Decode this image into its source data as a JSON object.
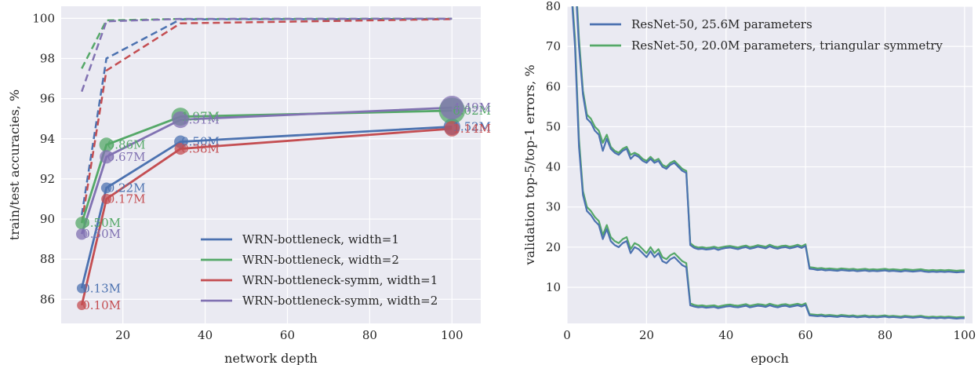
{
  "colors": {
    "blue": "#4c72b0",
    "green": "#55a868",
    "red": "#c44e52",
    "purple": "#8172b2",
    "background": "#eaeaf2",
    "grid": "#ffffff"
  },
  "chart_data": [
    {
      "type": "line",
      "xlabel": "network depth",
      "ylabel": "train/test accuracies, %",
      "xlim": [
        5,
        107
      ],
      "ylim": [
        84.8,
        100.6
      ],
      "xticks": [
        20,
        40,
        60,
        80,
        100
      ],
      "yticks": [
        86,
        88,
        90,
        92,
        94,
        96,
        98,
        100
      ],
      "grid": true,
      "legend_position": "lower-right",
      "x": [
        10,
        16,
        34,
        100
      ],
      "series": [
        {
          "name": "WRN-bottleneck, width=1",
          "color": "#4c72b0",
          "test": [
            86.55,
            91.55,
            93.85,
            94.6
          ],
          "train": [
            90.2,
            98.0,
            99.95,
            99.97
          ],
          "params": [
            "0.13M",
            "0.22M",
            "0.50M",
            "1.52M"
          ],
          "marker_sizes": [
            0.13,
            0.22,
            0.5,
            1.52
          ]
        },
        {
          "name": "WRN-bottleneck, width=2",
          "color": "#55a868",
          "test": [
            89.8,
            93.7,
            95.1,
            95.4
          ],
          "train": [
            97.5,
            99.9,
            99.97,
            99.98
          ],
          "params": [
            "0.50M",
            "0.86M",
            "1.97M",
            "6.02M"
          ],
          "marker_sizes": [
            0.5,
            0.86,
            1.97,
            6.02
          ]
        },
        {
          "name": "WRN-bottleneck-symm, width=1",
          "color": "#c44e52",
          "test": [
            85.7,
            91.0,
            93.5,
            94.5
          ],
          "train": [
            89.8,
            97.4,
            99.75,
            99.96
          ],
          "params": [
            "0.10M",
            "0.17M",
            "0.38M",
            "1.14M"
          ],
          "marker_sizes": [
            0.1,
            0.17,
            0.38,
            1.14
          ]
        },
        {
          "name": "WRN-bottleneck-symm, width=2",
          "color": "#8172b2",
          "test": [
            89.25,
            93.1,
            94.95,
            95.55
          ],
          "train": [
            96.35,
            99.85,
            99.97,
            99.98
          ],
          "params": [
            "0.30M",
            "0.67M",
            "1.51M",
            "4.49M"
          ],
          "marker_sizes": [
            0.3,
            0.67,
            1.51,
            4.49
          ]
        }
      ]
    },
    {
      "type": "line",
      "xlabel": "epoch",
      "ylabel": "validation top-5/top-1 errors, %",
      "xlim": [
        0,
        102
      ],
      "ylim": [
        1,
        80
      ],
      "xticks": [
        0,
        20,
        40,
        60,
        80,
        100
      ],
      "yticks": [
        10,
        20,
        30,
        40,
        50,
        60,
        70,
        80
      ],
      "grid": true,
      "legend_position": "top-right",
      "series": [
        {
          "name": "ResNet-50, 25.6M parameters",
          "color": "#4c72b0",
          "epochs": [
            1,
            2,
            3,
            4,
            5,
            6,
            7,
            8,
            9,
            10,
            11,
            12,
            13,
            14,
            15,
            16,
            17,
            18,
            19,
            20,
            21,
            22,
            23,
            24,
            25,
            26,
            27,
            28,
            29,
            30,
            31,
            32,
            33,
            34,
            35,
            36,
            37,
            38,
            39,
            40,
            41,
            42,
            43,
            44,
            45,
            46,
            47,
            48,
            49,
            50,
            51,
            52,
            53,
            54,
            55,
            56,
            57,
            58,
            59,
            60,
            61,
            62,
            63,
            64,
            65,
            66,
            67,
            68,
            69,
            70,
            71,
            72,
            73,
            74,
            75,
            76,
            77,
            78,
            79,
            80,
            81,
            82,
            83,
            84,
            85,
            86,
            87,
            88,
            89,
            90,
            91,
            92,
            93,
            94,
            95,
            96,
            97,
            98,
            99,
            100
          ],
          "top1": [
            95.0,
            88.0,
            70.0,
            58.0,
            52.0,
            51.0,
            49.0,
            48.0,
            44.0,
            47.0,
            44.5,
            43.5,
            43.0,
            44.0,
            44.5,
            42.0,
            43.0,
            42.5,
            41.5,
            41.0,
            42.0,
            41.0,
            41.5,
            40.0,
            39.5,
            40.5,
            41.0,
            40.0,
            39.0,
            38.5,
            20.5,
            19.8,
            19.5,
            19.6,
            19.4,
            19.5,
            19.7,
            19.3,
            19.6,
            19.8,
            19.9,
            19.7,
            19.5,
            19.8,
            20.0,
            19.6,
            19.8,
            20.1,
            19.9,
            19.7,
            20.2,
            19.8,
            19.6,
            19.9,
            20.0,
            19.7,
            19.9,
            20.2,
            19.8,
            20.3,
            14.6,
            14.5,
            14.3,
            14.4,
            14.2,
            14.3,
            14.2,
            14.1,
            14.3,
            14.2,
            14.1,
            14.2,
            14.0,
            14.1,
            14.2,
            14.0,
            14.1,
            14.0,
            14.1,
            14.2,
            14.0,
            14.1,
            14.0,
            13.9,
            14.1,
            14.0,
            13.9,
            14.0,
            14.1,
            13.9,
            13.8,
            13.9,
            13.8,
            13.9,
            13.8,
            13.9,
            13.8,
            13.7,
            13.8,
            13.8
          ],
          "top5": [
            85.0,
            70.0,
            45.0,
            33.0,
            29.0,
            28.0,
            26.5,
            25.5,
            22.0,
            24.5,
            21.5,
            20.5,
            20.0,
            21.0,
            21.5,
            18.5,
            20.0,
            19.5,
            18.5,
            17.5,
            19.0,
            17.5,
            18.5,
            16.5,
            16.0,
            17.0,
            17.5,
            16.5,
            15.5,
            15.0,
            5.5,
            5.2,
            5.0,
            5.1,
            4.9,
            5.0,
            5.1,
            4.8,
            5.0,
            5.2,
            5.3,
            5.1,
            5.0,
            5.2,
            5.4,
            5.0,
            5.2,
            5.4,
            5.3,
            5.1,
            5.5,
            5.2,
            5.0,
            5.3,
            5.4,
            5.1,
            5.3,
            5.5,
            5.2,
            5.6,
            3.0,
            2.9,
            2.8,
            2.9,
            2.7,
            2.8,
            2.7,
            2.6,
            2.8,
            2.7,
            2.6,
            2.7,
            2.5,
            2.6,
            2.7,
            2.5,
            2.6,
            2.5,
            2.6,
            2.7,
            2.5,
            2.6,
            2.5,
            2.4,
            2.6,
            2.5,
            2.4,
            2.5,
            2.6,
            2.4,
            2.3,
            2.4,
            2.3,
            2.4,
            2.3,
            2.4,
            2.3,
            2.2,
            2.3,
            2.3
          ]
        },
        {
          "name": "ResNet-50, 20.0M parameters, triangular symmetry",
          "color": "#55a868",
          "epochs": [
            1,
            2,
            3,
            4,
            5,
            6,
            7,
            8,
            9,
            10,
            11,
            12,
            13,
            14,
            15,
            16,
            17,
            18,
            19,
            20,
            21,
            22,
            23,
            24,
            25,
            26,
            27,
            28,
            29,
            30,
            31,
            32,
            33,
            34,
            35,
            36,
            37,
            38,
            39,
            40,
            41,
            42,
            43,
            44,
            45,
            46,
            47,
            48,
            49,
            50,
            51,
            52,
            53,
            54,
            55,
            56,
            57,
            58,
            59,
            60,
            61,
            62,
            63,
            64,
            65,
            66,
            67,
            68,
            69,
            70,
            71,
            72,
            73,
            74,
            75,
            76,
            77,
            78,
            79,
            80,
            81,
            82,
            83,
            84,
            85,
            86,
            87,
            88,
            89,
            90,
            91,
            92,
            93,
            94,
            95,
            96,
            97,
            98,
            99,
            100
          ],
          "top1": [
            96.0,
            90.0,
            72.0,
            59.0,
            53.0,
            52.0,
            50.0,
            49.0,
            46.0,
            48.0,
            45.0,
            44.0,
            43.5,
            44.5,
            45.0,
            43.0,
            43.5,
            43.0,
            42.0,
            41.5,
            42.5,
            41.5,
            42.0,
            40.5,
            40.0,
            41.0,
            41.5,
            40.5,
            39.5,
            39.0,
            21.0,
            20.2,
            19.9,
            20.0,
            19.8,
            19.9,
            20.1,
            19.8,
            20.0,
            20.2,
            20.3,
            20.1,
            19.9,
            20.2,
            20.4,
            20.0,
            20.2,
            20.5,
            20.3,
            20.1,
            20.6,
            20.2,
            20.0,
            20.3,
            20.4,
            20.1,
            20.3,
            20.6,
            20.2,
            20.7,
            15.0,
            14.9,
            14.7,
            14.8,
            14.6,
            14.7,
            14.6,
            14.5,
            14.7,
            14.6,
            14.5,
            14.6,
            14.4,
            14.5,
            14.6,
            14.4,
            14.5,
            14.4,
            14.5,
            14.6,
            14.4,
            14.5,
            14.4,
            14.3,
            14.5,
            14.4,
            14.3,
            14.4,
            14.5,
            14.3,
            14.2,
            14.3,
            14.2,
            14.3,
            14.2,
            14.3,
            14.2,
            14.1,
            14.2,
            14.2
          ],
          "top5": [
            86.0,
            72.0,
            47.0,
            34.0,
            30.0,
            29.0,
            27.5,
            26.5,
            23.0,
            25.5,
            22.5,
            21.5,
            21.0,
            22.0,
            22.5,
            19.5,
            21.0,
            20.5,
            19.5,
            18.5,
            20.0,
            18.5,
            19.5,
            17.5,
            17.0,
            18.0,
            18.5,
            17.5,
            16.5,
            16.0,
            6.0,
            5.6,
            5.4,
            5.5,
            5.3,
            5.4,
            5.5,
            5.2,
            5.4,
            5.6,
            5.7,
            5.5,
            5.4,
            5.6,
            5.8,
            5.4,
            5.6,
            5.8,
            5.7,
            5.5,
            5.9,
            5.6,
            5.4,
            5.7,
            5.8,
            5.5,
            5.7,
            5.9,
            5.6,
            6.0,
            3.3,
            3.2,
            3.1,
            3.2,
            3.0,
            3.1,
            3.0,
            2.9,
            3.1,
            3.0,
            2.9,
            3.0,
            2.8,
            2.9,
            3.0,
            2.8,
            2.9,
            2.8,
            2.9,
            3.0,
            2.8,
            2.9,
            2.8,
            2.7,
            2.9,
            2.8,
            2.7,
            2.8,
            2.9,
            2.7,
            2.6,
            2.7,
            2.6,
            2.7,
            2.6,
            2.7,
            2.6,
            2.5,
            2.6,
            2.6
          ]
        }
      ]
    }
  ]
}
